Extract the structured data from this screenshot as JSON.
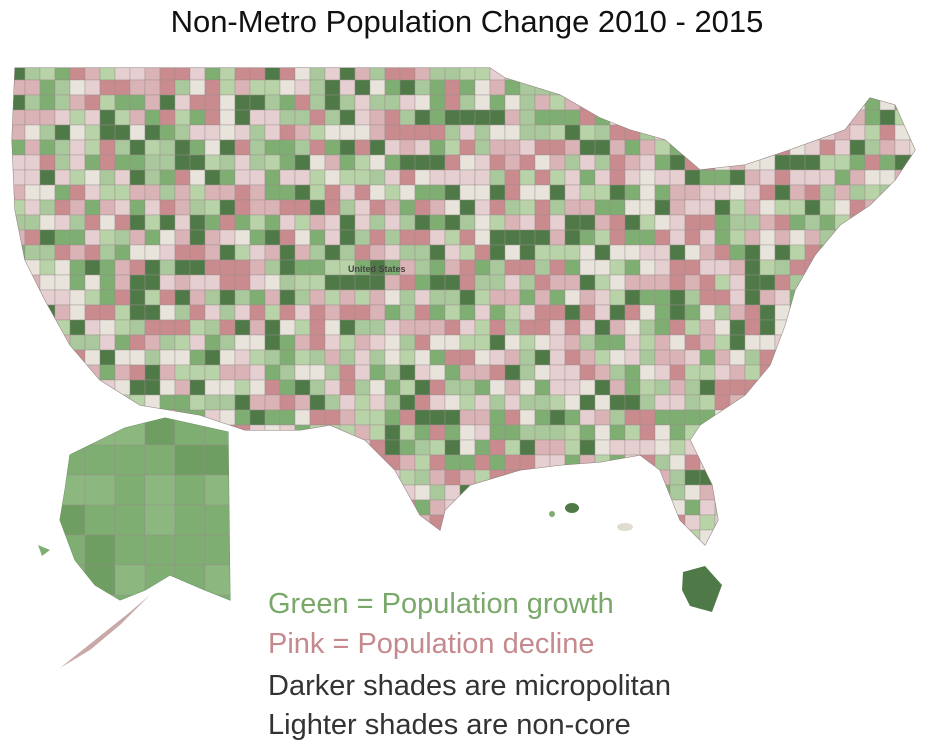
{
  "title": "Non-Metro Population Change 2010 - 2015",
  "map": {
    "label": "United States"
  },
  "legend": [
    "Green = Population growth",
    "Pink = Population decline",
    "Darker shades are micropolitan",
    "Lighter shades are non-core"
  ]
}
